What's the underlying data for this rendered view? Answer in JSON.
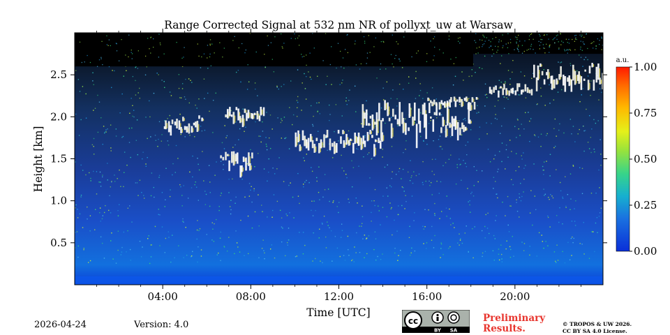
{
  "chart_data": {
    "type": "heatmap",
    "title": "Range Corrected Signal at 532 nm NR of pollyxt_uw at Warsaw",
    "xlabel": "Time [UTC]",
    "ylabel": "Height [km]",
    "x_unit": "hours UTC",
    "xlim": [
      0,
      24
    ],
    "ylim": [
      0,
      3.0
    ],
    "xticks": [
      4,
      8,
      12,
      16,
      20
    ],
    "xtick_labels": [
      "04:00",
      "08:00",
      "12:00",
      "16:00",
      "20:00"
    ],
    "yticks": [
      0.5,
      1.0,
      1.5,
      2.0,
      2.5
    ],
    "ytick_labels": [
      "0.5",
      "1.0",
      "1.5",
      "2.0",
      "2.5"
    ],
    "colorbar": {
      "label": "a.u.",
      "range": [
        0.0,
        1.0
      ],
      "ticks": [
        0.0,
        0.25,
        0.5,
        0.75,
        1.0
      ],
      "tick_labels": [
        "0.00",
        "0.25",
        "0.50",
        "0.75",
        "1.00"
      ]
    },
    "no_signal_regions": [
      {
        "from_hour": 0,
        "to_hour": 18.1,
        "above_km": 2.6
      },
      {
        "from_hour": 18.1,
        "to_hour": 24,
        "above_km": 2.75
      }
    ],
    "cloud_layers": [
      {
        "start_hour": 4.0,
        "end_hour": 5.8,
        "base_km": 1.78,
        "top_km": 2.02
      },
      {
        "start_hour": 6.8,
        "end_hour": 8.6,
        "base_km": 1.9,
        "top_km": 2.15
      },
      {
        "start_hour": 6.6,
        "end_hour": 8.1,
        "base_km": 1.3,
        "top_km": 1.6
      },
      {
        "start_hour": 10.0,
        "end_hour": 14.0,
        "base_km": 1.55,
        "top_km": 1.85
      },
      {
        "start_hour": 13.0,
        "end_hour": 18.0,
        "base_km": 1.65,
        "top_km": 2.2
      },
      {
        "start_hour": 16.0,
        "end_hour": 18.3,
        "base_km": 2.1,
        "top_km": 2.25
      },
      {
        "start_hour": 18.8,
        "end_hour": 20.8,
        "base_km": 2.25,
        "top_km": 2.4
      },
      {
        "start_hour": 20.8,
        "end_hour": 24.0,
        "base_km": 2.3,
        "top_km": 2.65
      }
    ]
  },
  "footer": {
    "date": "2026-04-24",
    "version": "Version: 4.0",
    "preliminary_line1": "Preliminary",
    "preliminary_line2": "Results.",
    "copyright_line1": "© TROPOS & UW 2026.",
    "copyright_line2": "CC BY SA 4.0 License.",
    "cc_badge_text": [
      "cc",
      "BY",
      "SA"
    ]
  }
}
